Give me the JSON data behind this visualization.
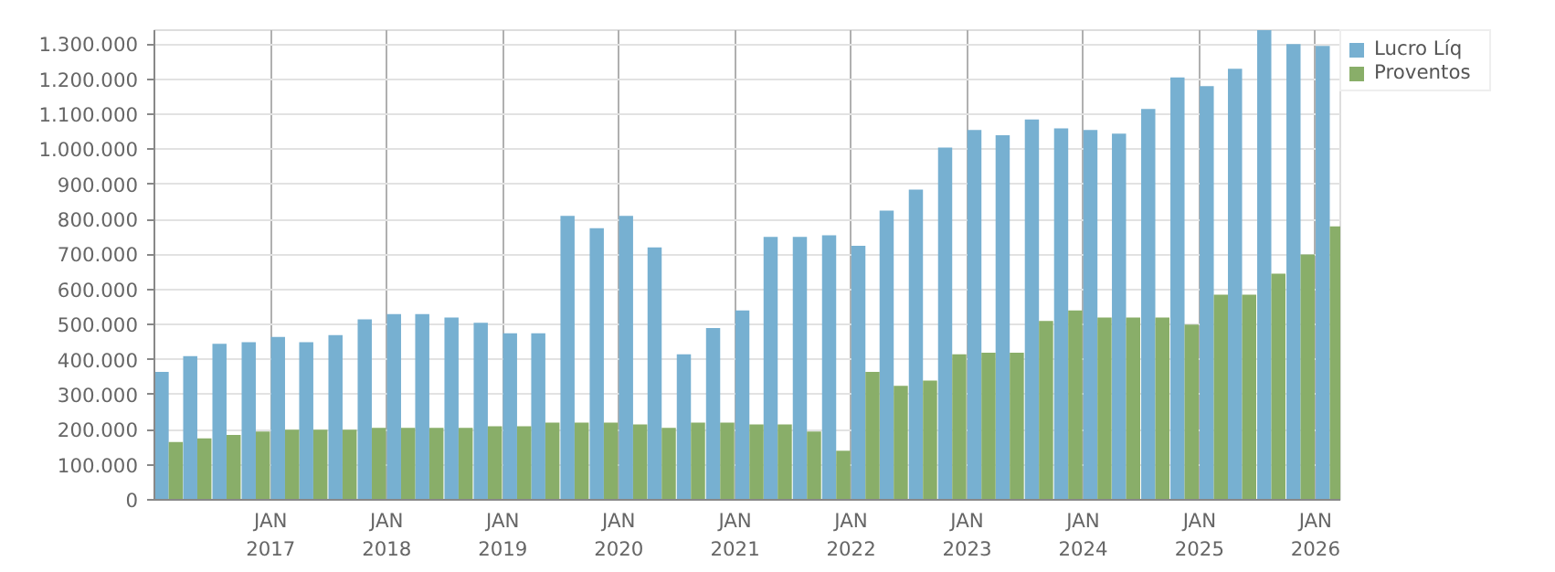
{
  "chart_data": {
    "type": "bar",
    "x": [
      "2016-02-15",
      "2016-05-15",
      "2016-08-15",
      "2016-11-15",
      "2017-02-15",
      "2017-05-15",
      "2017-08-15",
      "2017-11-15",
      "2018-02-15",
      "2018-05-15",
      "2018-08-15",
      "2018-11-15",
      "2019-02-15",
      "2019-05-15",
      "2019-08-15",
      "2019-11-15",
      "2020-02-15",
      "2020-05-15",
      "2020-08-15",
      "2020-11-15",
      "2021-02-15",
      "2021-05-15",
      "2021-08-15",
      "2021-11-15",
      "2022-02-15",
      "2022-05-15",
      "2022-08-15",
      "2022-11-15",
      "2023-02-15",
      "2023-05-15",
      "2023-08-15",
      "2023-11-15",
      "2024-02-15",
      "2024-05-15",
      "2024-08-15",
      "2024-11-15",
      "2025-02-15",
      "2025-05-15",
      "2025-08-15",
      "2025-11-15",
      "2026-02-15"
    ],
    "series": [
      {
        "name": "Lucro Líq",
        "color": "#77b0d1",
        "values": [
          365000,
          410000,
          445000,
          450000,
          465000,
          450000,
          470000,
          515000,
          530000,
          530000,
          520000,
          505000,
          475000,
          475000,
          810000,
          775000,
          810000,
          720000,
          415000,
          490000,
          540000,
          750000,
          750000,
          755000,
          725000,
          825000,
          885000,
          1005000,
          1055000,
          1040000,
          1085000,
          1060000,
          1055000,
          1045000,
          1115000,
          1205000,
          1180000,
          1230000,
          1340000,
          1300000,
          1295000
        ]
      },
      {
        "name": "Proventos",
        "color": "#89ae69",
        "values": [
          165000,
          175000,
          185000,
          195000,
          200000,
          200000,
          200000,
          205000,
          205000,
          205000,
          205000,
          210000,
          210000,
          220000,
          220000,
          220000,
          215000,
          205000,
          220000,
          220000,
          215000,
          215000,
          195000,
          140000,
          365000,
          325000,
          340000,
          415000,
          420000,
          420000,
          510000,
          540000,
          520000,
          520000,
          520000,
          500000,
          585000,
          585000,
          645000,
          700000,
          780000
        ]
      }
    ],
    "xlim": [
      "2016-01-01",
      "2026-03-20"
    ],
    "xticks": [
      {
        "value": "2017-01-01",
        "label": "JAN\n2017"
      },
      {
        "value": "2018-01-01",
        "label": "JAN\n2018"
      },
      {
        "value": "2019-01-01",
        "label": "JAN\n2019"
      },
      {
        "value": "2020-01-01",
        "label": "JAN\n2020"
      },
      {
        "value": "2021-01-01",
        "label": "JAN\n2021"
      },
      {
        "value": "2022-01-01",
        "label": "JAN\n2022"
      },
      {
        "value": "2023-01-01",
        "label": "JAN\n2023"
      },
      {
        "value": "2024-01-01",
        "label": "JAN\n2024"
      },
      {
        "value": "2025-01-01",
        "label": "JAN\n2025"
      },
      {
        "value": "2026-01-01",
        "label": "JAN\n2026"
      }
    ],
    "ylim": [
      0,
      1340000
    ],
    "yticks": [
      0,
      {
        "value": 100000,
        "label": "100.000"
      },
      {
        "value": 200000,
        "label": "200.000"
      },
      {
        "value": 300000,
        "label": "300.000"
      },
      {
        "value": 400000,
        "label": "400.000"
      },
      {
        "value": 500000,
        "label": "500.000"
      },
      {
        "value": 600000,
        "label": "600.000"
      },
      {
        "value": 700000,
        "label": "700.000"
      },
      {
        "value": 800000,
        "label": "800.000"
      },
      {
        "value": 900000,
        "label": "900.000"
      },
      {
        "value": 1000000,
        "label": "1.000.000"
      },
      {
        "value": 1100000,
        "label": "1.100.000"
      },
      {
        "value": 1200000,
        "label": "1.200.000"
      },
      {
        "value": 1300000,
        "label": "1.300.000"
      }
    ],
    "grid": true,
    "legend": "top right"
  }
}
